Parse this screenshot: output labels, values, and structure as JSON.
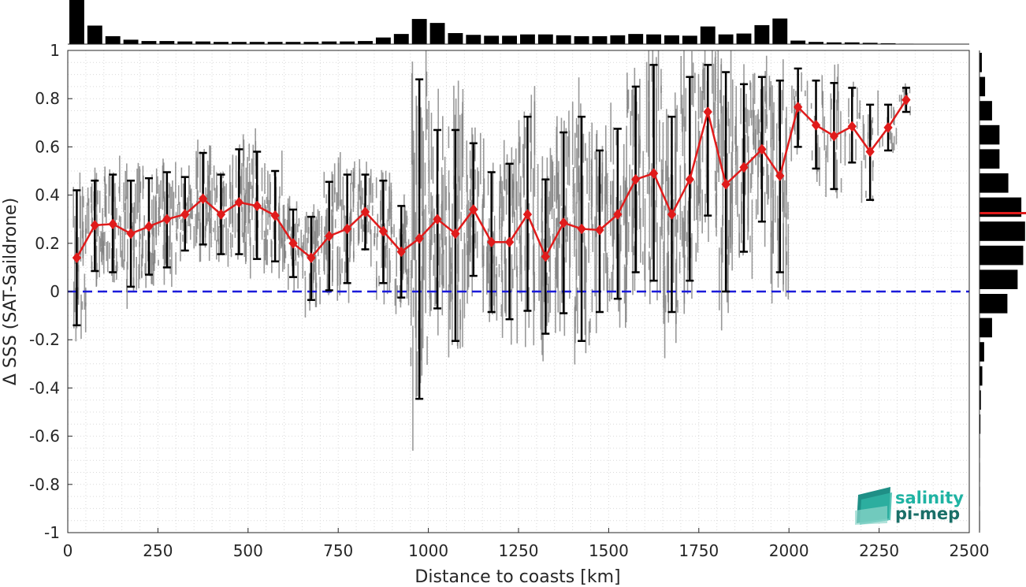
{
  "chart_data": {
    "type": "line",
    "xlabel": "Distance to coasts [km]",
    "ylabel": "Δ SSS (SAT-Saildrone)",
    "xlim": [
      0,
      2500
    ],
    "ylim": [
      -1,
      1
    ],
    "xticks": [
      0,
      250,
      500,
      750,
      1000,
      1250,
      1500,
      1750,
      2000,
      2250,
      2500
    ],
    "yticks": [
      -1,
      -0.8,
      -0.6,
      -0.4,
      -0.2,
      0,
      0.2,
      0.4,
      0.6,
      0.8,
      1
    ],
    "grid": true,
    "reference_line": {
      "y": 0,
      "color": "#1a1adb",
      "style": "dashed"
    },
    "series": [
      {
        "type": "line-errorbar",
        "color": "#e01b1b",
        "marker": "diamond",
        "x": [
          25,
          75,
          125,
          175,
          225,
          275,
          325,
          375,
          425,
          475,
          525,
          575,
          625,
          675,
          725,
          775,
          825,
          875,
          925,
          975,
          1025,
          1075,
          1125,
          1175,
          1225,
          1275,
          1325,
          1375,
          1425,
          1475,
          1525,
          1575,
          1625,
          1675,
          1725,
          1775,
          1825,
          1875,
          1925,
          1975,
          2025,
          2075,
          2125,
          2175,
          2225,
          2275,
          2325
        ],
        "y": [
          0.14,
          0.275,
          0.28,
          0.24,
          0.27,
          0.3,
          0.32,
          0.385,
          0.32,
          0.37,
          0.355,
          0.315,
          0.2,
          0.14,
          0.23,
          0.26,
          0.33,
          0.25,
          0.165,
          0.22,
          0.3,
          0.24,
          0.34,
          0.205,
          0.205,
          0.32,
          0.145,
          0.285,
          0.26,
          0.255,
          0.32,
          0.465,
          0.49,
          0.32,
          0.465,
          0.745,
          0.445,
          0.515,
          0.59,
          0.48,
          0.765,
          0.69,
          0.645,
          0.685,
          0.58,
          0.68,
          0.795
        ],
        "err_low": [
          -0.14,
          0.085,
          0.08,
          0.02,
          0.07,
          0.1,
          0.17,
          0.195,
          0.155,
          0.155,
          0.135,
          0.125,
          0.06,
          -0.035,
          0.005,
          0.035,
          0.175,
          0.035,
          -0.025,
          -0.445,
          -0.07,
          -0.205,
          0.065,
          -0.085,
          -0.115,
          -0.08,
          -0.175,
          -0.09,
          -0.205,
          -0.085,
          -0.03,
          0.08,
          0.045,
          -0.085,
          0.045,
          0.315,
          0.0,
          0.165,
          0.29,
          0.08,
          0.6,
          0.51,
          0.425,
          0.535,
          0.38,
          0.585,
          0.745
        ],
        "err_high": [
          0.42,
          0.46,
          0.485,
          0.46,
          0.47,
          0.495,
          0.475,
          0.575,
          0.485,
          0.59,
          0.58,
          0.5,
          0.34,
          0.31,
          0.455,
          0.485,
          0.485,
          0.46,
          0.355,
          0.88,
          0.67,
          0.67,
          0.615,
          0.495,
          0.53,
          0.725,
          0.465,
          0.66,
          0.725,
          0.585,
          0.675,
          0.85,
          0.94,
          0.725,
          0.89,
          0.94,
          0.91,
          0.86,
          0.89,
          0.875,
          0.925,
          0.875,
          0.865,
          0.845,
          0.775,
          0.775,
          0.845
        ]
      },
      {
        "type": "scatter-cloud",
        "color": "#808080",
        "x_ranges": [
          [
            15,
            2000
          ],
          [
            2000,
            2340
          ]
        ],
        "y_ranges": [
          [
            -0.65,
            1.0
          ],
          [
            0.35,
            0.92
          ]
        ]
      }
    ],
    "top_histogram": {
      "bin_width": 50,
      "heights": [
        1.0,
        0.42,
        0.18,
        0.1,
        0.07,
        0.07,
        0.06,
        0.06,
        0.05,
        0.05,
        0.05,
        0.05,
        0.05,
        0.05,
        0.06,
        0.06,
        0.07,
        0.15,
        0.23,
        0.57,
        0.48,
        0.25,
        0.21,
        0.19,
        0.19,
        0.22,
        0.22,
        0.2,
        0.18,
        0.18,
        0.2,
        0.23,
        0.22,
        0.2,
        0.19,
        0.4,
        0.22,
        0.24,
        0.43,
        0.58,
        0.08,
        0.05,
        0.04,
        0.04,
        0.03,
        0.02,
        0.01
      ]
    },
    "right_histogram": {
      "bin_width": 0.1,
      "bins_from_top": [
        0.05,
        0.12,
        0.27,
        0.43,
        0.43,
        0.62,
        0.9,
        0.98,
        0.94,
        0.82,
        0.6,
        0.27,
        0.1,
        0.06,
        0.03,
        0.02,
        0.01,
        0.01,
        0.01,
        0.01
      ],
      "mean_marker": {
        "y": 0.325,
        "color": "#e01b1b"
      }
    }
  },
  "logo": {
    "line1": "salinity",
    "line2": "pi-mep",
    "color1": "#1fb3a3",
    "color2": "#1a6f68"
  }
}
